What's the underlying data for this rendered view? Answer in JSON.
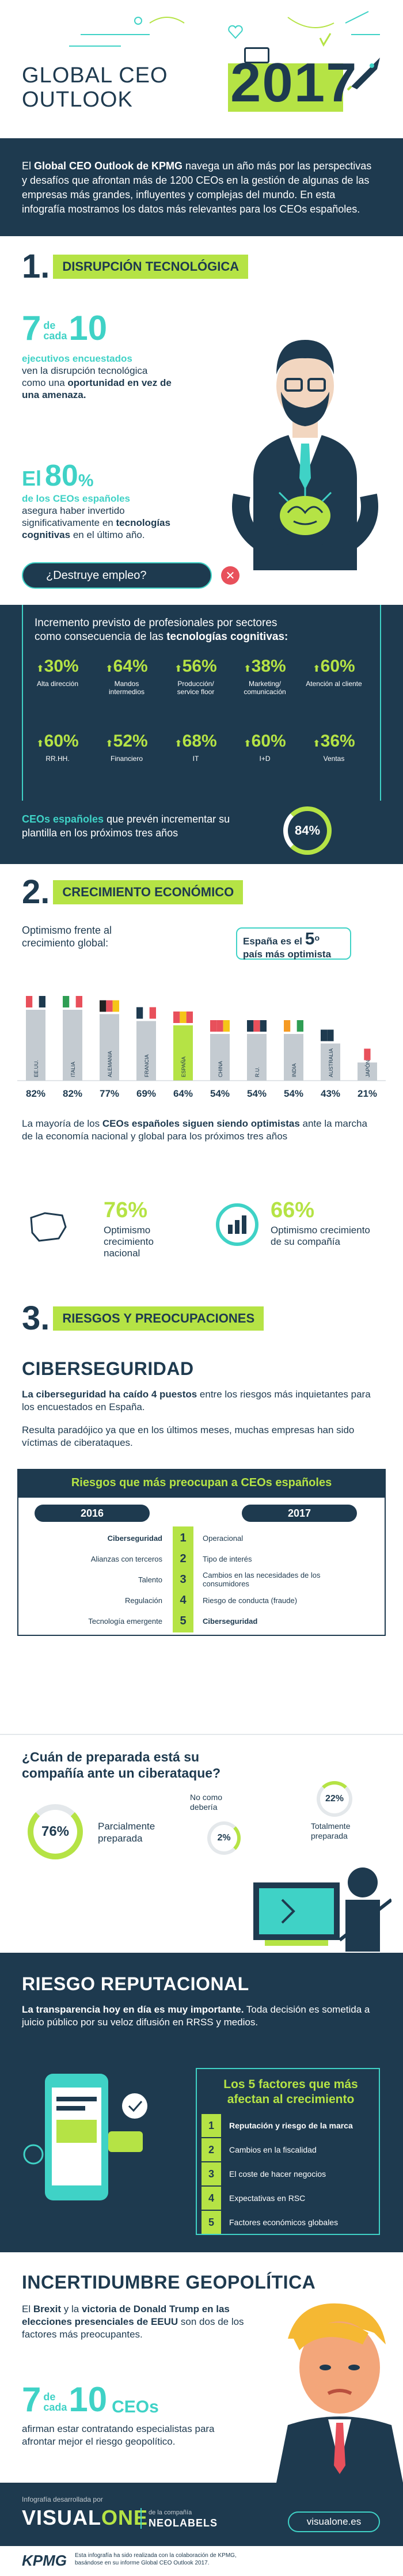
{
  "header": {
    "title_line1": "GLOBAL CEO",
    "title_line2": "OUTLOOK",
    "year": "2017"
  },
  "intro": {
    "p1": "El ",
    "p1_bold": "Global CEO Outlook de KPMG",
    "p1_rest": " navega un año más por las perspectivas y desafíos que afrontan más de 1200 CEOs en la gestión de algunas de las empresas más grandes, influyentes y complejas del mundo. En esta infografía mostramos los datos más relevantes para los CEOs españoles."
  },
  "s1": {
    "num": "1.",
    "title": "DISRUPCIÓN TECNOLÓGICA",
    "seven": "7",
    "de_cada": "de cada",
    "ten": "10",
    "ejecutivos": "ejecutivos encuestados",
    "ejec_rest": "ven la disrupción tecnológica como una",
    "oportunidad": "oportunidad en vez de una amenaza.",
    "el": "El",
    "pct80": "80",
    "pct_sign": "%",
    "ceos_esp": "de los CEOs españoles",
    "asegura": "asegura haber invertido significativamente en",
    "tec_cog": "tecnologías cognitivas",
    "ultimo_anio": "en el último año.",
    "destruye": "¿Destruye empleo?",
    "inc_title1": "Incremento previsto de profesionales por sectores",
    "inc_title2": "como consecuencia de las",
    "inc_title_bold": "tecnologías cognitivas:",
    "stats_row1": [
      {
        "pct": "30%",
        "label": "Alta dirección",
        "arrow": "up"
      },
      {
        "pct": "64%",
        "label": "Mandos intermedios",
        "arrow": "up"
      },
      {
        "pct": "56%",
        "label": "Producción/ service floor",
        "arrow": "up"
      },
      {
        "pct": "38%",
        "label": "Marketing/ comunicación",
        "arrow": "up"
      },
      {
        "pct": "60%",
        "label": "Atención al cliente",
        "arrow": "up"
      }
    ],
    "stats_row2": [
      {
        "pct": "60%",
        "label": "RR.HH.",
        "arrow": "up"
      },
      {
        "pct": "52%",
        "label": "Financiero",
        "arrow": "up"
      },
      {
        "pct": "68%",
        "label": "IT",
        "arrow": "up"
      },
      {
        "pct": "60%",
        "label": "I+D",
        "arrow": "up"
      },
      {
        "pct": "36%",
        "label": "Ventas",
        "arrow": "up"
      }
    ],
    "plantilla_bold": "CEOs españoles",
    "plantilla_rest": " que prevén incrementar su plantilla en los próximos tres años",
    "plantilla_pct": "84%"
  },
  "s2": {
    "num": "2.",
    "title": "CRECIMIENTO ECONÓMICO",
    "opt_title": "Optimismo frente al crecimiento global:",
    "espana_es": "España es el",
    "quinto": "5",
    "quinto_sup": "o",
    "pais_opt": "país más optimista",
    "chart_data": {
      "type": "bar",
      "categories": [
        "EE.UU.",
        "ITALIA",
        "ALEMANIA",
        "FRANCIA",
        "ESPAÑA",
        "CHINA",
        "R.U.",
        "INDIA",
        "AUSTRALIA",
        "JAPÓN"
      ],
      "values": [
        82,
        82,
        77,
        69,
        64,
        54,
        54,
        54,
        43,
        21
      ],
      "value_labels": [
        "82%",
        "82%",
        "77%",
        "69%",
        "64%",
        "54%",
        "54%",
        "54%",
        "43%",
        "21%"
      ],
      "ylim": [
        0,
        100
      ],
      "colors": [
        "#c4cbd1",
        "#c4cbd1",
        "#c4cbd1",
        "#c4cbd1",
        "#b5e345",
        "#c4cbd1",
        "#c4cbd1",
        "#c4cbd1",
        "#c4cbd1",
        "#c4cbd1"
      ]
    },
    "mayoria1": "La mayoría de los ",
    "mayoria_bold": "CEOs españoles siguen siendo optimistas",
    "mayoria_rest": " ante la marcha de la economía nacional y global para los próximos tres años",
    "nac_pct": "76%",
    "nac_label": "Optimismo crecimiento nacional",
    "comp_pct": "66%",
    "comp_label": "Optimismo crecimiento de su compañía"
  },
  "s3": {
    "num": "3.",
    "title": "RIESGOS Y PREOCUPACIONES",
    "ciber_title": "CIBERSEGURIDAD",
    "ciber_p1_bold": "La ciberseguridad ha caído 4 puestos",
    "ciber_p1_rest": " entre los riesgos más inquietantes para los encuestados en España.",
    "ciber_p2": "Resulta paradójico ya que en los últimos meses, muchas empresas han sido víctimas de ciberataques.",
    "riesgos_title": "Riesgos que más preocupan a CEOs españoles",
    "col2016": "2016",
    "col2017": "2017",
    "risks": [
      {
        "n": "1",
        "y2016": "Ciberseguridad",
        "y2017": "Operacional"
      },
      {
        "n": "2",
        "y2016": "Alianzas con terceros",
        "y2017": "Tipo de interés"
      },
      {
        "n": "3",
        "y2016": "Talento",
        "y2017": "Cambios en las necesidades de los consumidores"
      },
      {
        "n": "4",
        "y2016": "Regulación",
        "y2017": "Riesgo de conducta (fraude)"
      },
      {
        "n": "5",
        "y2016": "Tecnología emergente",
        "y2017": "Ciberseguridad"
      }
    ],
    "prep_title": "¿Cuán de preparada está su compañía ante un ciberataque?",
    "prep_parcial_pct": "76%",
    "prep_parcial_label": "Parcialmente preparada",
    "prep_no_pct": "2%",
    "prep_no_label": "No como debería",
    "prep_total_pct": "22%",
    "prep_total_label": "Totalmente preparada"
  },
  "rep": {
    "title": "RIESGO REPUTACIONAL",
    "p1_bold": "La transparencia hoy en día es muy importante.",
    "p1_rest": " Toda decisión es sometida a juicio público por su veloz difusión en RRSS y medios.",
    "factores_title": "Los 5 factores que más afectan al crecimiento",
    "factors": [
      {
        "n": "1",
        "label": "Reputación y riesgo de la marca"
      },
      {
        "n": "2",
        "label": "Cambios en la fiscalidad"
      },
      {
        "n": "3",
        "label": "El coste de hacer negocios"
      },
      {
        "n": "4",
        "label": "Expectativas en RSC"
      },
      {
        "n": "5",
        "label": "Factores económicos globales"
      }
    ]
  },
  "geo": {
    "title": "INCERTIDUMBRE GEOPOLÍTICA",
    "p1_a": "El ",
    "p1_bold1": "Brexit",
    "p1_b": " y la ",
    "p1_bold2": "victoria de Donald Trump en las elecciones presenciales de EEUU",
    "p1_c": " son dos de los factores más preocupantes.",
    "seven": "7",
    "de_cada": "de cada",
    "ten": "10",
    "ceos": "CEOs",
    "rest": "afirman estar contratando especialistas para afrontar mejor el riesgo geopolítico."
  },
  "footer": {
    "desarrollada": "Infografía desarrollada por",
    "brand1": "VISUAL",
    "brand2": "ONE",
    "company": "de la compañía",
    "neolabels": "NEOLABELS",
    "url": "visualone.es",
    "kpmg": "KPMG",
    "note": "Esta infografía ha sido realizada con la colaboración de KPMG, basándose en su informe Global CEO Outlook 2017."
  },
  "colors": {
    "navy": "#1e3a4f",
    "lime": "#b5e345",
    "teal": "#3fd2c6",
    "red": "#e8505b",
    "grey": "#c4cbd1"
  }
}
